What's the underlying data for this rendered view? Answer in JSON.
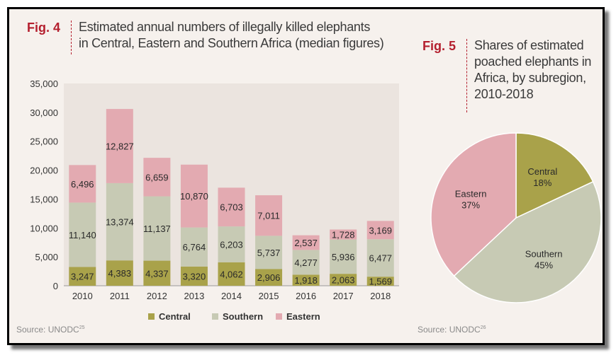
{
  "fig4": {
    "label": "Fig. 4",
    "title_line1": "Estimated annual numbers of illegally killed elephants",
    "title_line2": "in Central, Eastern and Southern Africa (median figures)",
    "source": "Source: UNODC",
    "source_note": "25"
  },
  "fig5": {
    "label": "Fig. 5",
    "title_line1": "Shares of estimated",
    "title_line2": "poached elephants in",
    "title_line3": "Africa, by subregion,",
    "title_line4": "2010-2018",
    "source": "Source: UNODC",
    "source_note": "26"
  },
  "colors": {
    "central": "#a9a24a",
    "southern": "#c7cab4",
    "eastern": "#e3aab1",
    "accent": "#b41f2e",
    "panel_bg": "#f6f1ed",
    "plot_bg": "#ebe4df"
  },
  "chart_data": [
    {
      "type": "bar",
      "stacked": true,
      "categories": [
        "2010",
        "2011",
        "2012",
        "2013",
        "2014",
        "2015",
        "2016",
        "2017",
        "2018"
      ],
      "category_labels": [
        "2010",
        "2011",
        "2012",
        "2013",
        "2014",
        "2015",
        "2016",
        "2017",
        "2018"
      ],
      "series": [
        {
          "name": "Central",
          "key": "central",
          "values": [
            3247,
            4383,
            4337,
            3320,
            4062,
            2906,
            1918,
            2063,
            1569
          ],
          "labels": [
            "3,247",
            "4,383",
            "4,337",
            "3,320",
            "4,062",
            "2,906",
            "1,918",
            "2,063",
            "1,569"
          ]
        },
        {
          "name": "Southern",
          "key": "southern",
          "values": [
            11140,
            13374,
            11137,
            6764,
            6203,
            5737,
            4277,
            5936,
            6477
          ],
          "labels": [
            "11,140",
            "13,374",
            "11,137",
            "6,764",
            "6,203",
            "5,737",
            "4,277",
            "5,936",
            "6,477"
          ]
        },
        {
          "name": "Eastern",
          "key": "eastern",
          "values": [
            6496,
            12827,
            6659,
            10870,
            6703,
            7011,
            2537,
            1728,
            3169
          ],
          "labels": [
            "6,496",
            "12,827",
            "6,659",
            "10,870",
            "6,703",
            "7,011",
            "2,537",
            "1,728",
            "3,169"
          ]
        }
      ],
      "ylim": [
        0,
        35000
      ],
      "yticks": [
        0,
        5000,
        10000,
        15000,
        20000,
        25000,
        30000,
        35000
      ],
      "ytick_labels": [
        "0",
        "5,000",
        "10,000",
        "15,000",
        "20,000",
        "25,000",
        "30,000",
        "35,000"
      ],
      "legend": [
        "Central",
        "Southern",
        "Eastern"
      ],
      "legend_position": "bottom"
    },
    {
      "type": "pie",
      "slices": [
        {
          "name": "Central",
          "key": "central",
          "value": 18,
          "label": "18%"
        },
        {
          "name": "Southern",
          "key": "southern",
          "value": 45,
          "label": "45%"
        },
        {
          "name": "Eastern",
          "key": "eastern",
          "value": 37,
          "label": "37%"
        }
      ]
    }
  ]
}
